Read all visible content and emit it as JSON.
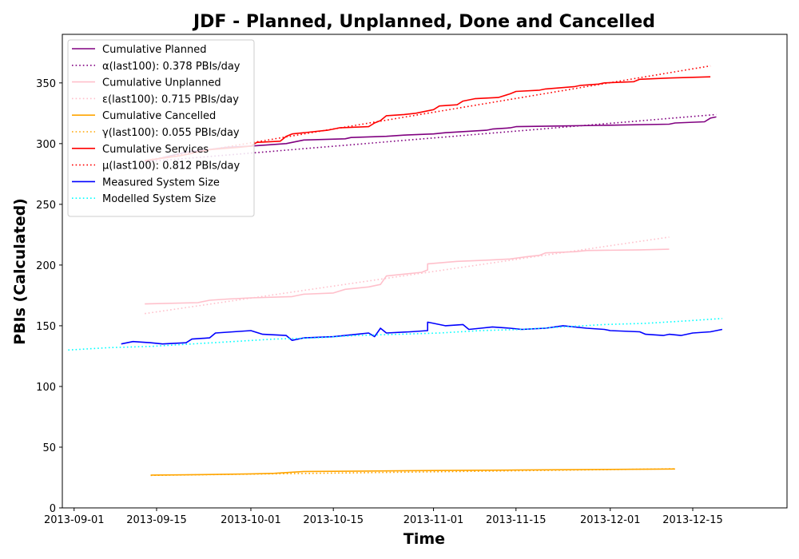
{
  "chart_data": {
    "type": "line",
    "title": "JDF - Planned, Unplanned, Done  and Cancelled",
    "xlabel": "Time",
    "ylabel": "PBIs (Calculated)",
    "xlim": [
      "2013-08-30",
      "2013-12-31"
    ],
    "ylim": [
      0,
      390
    ],
    "x_ticks": [
      "2013-09-01",
      "2013-09-15",
      "2013-10-01",
      "2013-10-15",
      "2013-11-01",
      "2013-11-15",
      "2013-12-01",
      "2013-12-15"
    ],
    "y_ticks": [
      0,
      50,
      100,
      150,
      200,
      250,
      300,
      350
    ],
    "grid": false,
    "legend_position": "top-left",
    "series": [
      {
        "name": "Cumulative Planned",
        "color": "#800080",
        "style": "solid",
        "points": [
          [
            "2013-09-13",
            285
          ],
          [
            "2013-09-20",
            293
          ],
          [
            "2013-09-27",
            297
          ],
          [
            "2013-10-01",
            298
          ],
          [
            "2013-10-07",
            300
          ],
          [
            "2013-10-10",
            303
          ],
          [
            "2013-10-17",
            304
          ],
          [
            "2013-10-18",
            305
          ],
          [
            "2013-10-24",
            306
          ],
          [
            "2013-10-27",
            307
          ],
          [
            "2013-11-01",
            308
          ],
          [
            "2013-11-03",
            309
          ],
          [
            "2013-11-10",
            311
          ],
          [
            "2013-11-11",
            312
          ],
          [
            "2013-11-14",
            313
          ],
          [
            "2013-11-15",
            314
          ],
          [
            "2013-11-22",
            314.5
          ],
          [
            "2013-11-29",
            315
          ],
          [
            "2013-12-11",
            316
          ],
          [
            "2013-12-12",
            317
          ],
          [
            "2013-12-17",
            318
          ],
          [
            "2013-12-18",
            321
          ],
          [
            "2013-12-19",
            322
          ]
        ]
      },
      {
        "name": "α(last100): 0.378 PBIs/day",
        "color": "#800080",
        "style": "dotted",
        "points": [
          [
            "2013-09-13",
            285
          ],
          [
            "2013-12-19",
            324
          ]
        ]
      },
      {
        "name": "Cumulative Unplanned",
        "color": "#ffc0cb",
        "style": "solid",
        "points": [
          [
            "2013-09-13",
            168
          ],
          [
            "2013-09-22",
            169
          ],
          [
            "2013-09-24",
            171
          ],
          [
            "2013-09-27",
            172
          ],
          [
            "2013-10-01",
            173
          ],
          [
            "2013-10-08",
            174
          ],
          [
            "2013-10-10",
            176
          ],
          [
            "2013-10-15",
            177
          ],
          [
            "2013-10-17",
            180
          ],
          [
            "2013-10-21",
            182
          ],
          [
            "2013-10-23",
            184
          ],
          [
            "2013-10-24",
            191
          ],
          [
            "2013-10-28",
            193
          ],
          [
            "2013-10-30",
            194
          ],
          [
            "2013-10-31",
            196
          ],
          [
            "2013-10-31",
            201
          ],
          [
            "2013-11-05",
            203
          ],
          [
            "2013-11-10",
            204
          ],
          [
            "2013-11-14",
            205
          ],
          [
            "2013-11-17",
            207
          ],
          [
            "2013-11-19",
            208
          ],
          [
            "2013-11-20",
            210
          ],
          [
            "2013-11-25",
            211
          ],
          [
            "2013-11-27",
            212
          ],
          [
            "2013-12-06",
            212.5
          ],
          [
            "2013-12-11",
            213
          ]
        ]
      },
      {
        "name": "ε(last100): 0.715 PBIs/day",
        "color": "#ffc0cb",
        "style": "dotted",
        "points": [
          [
            "2013-09-13",
            160
          ],
          [
            "2013-12-11",
            223
          ]
        ]
      },
      {
        "name": "Cumulative Cancelled",
        "color": "#ffa500",
        "style": "solid",
        "points": [
          [
            "2013-09-14",
            27
          ],
          [
            "2013-09-20",
            27.2
          ],
          [
            "2013-10-01",
            28
          ],
          [
            "2013-10-05",
            28.5
          ],
          [
            "2013-10-10",
            30
          ],
          [
            "2013-10-20",
            30.3
          ],
          [
            "2013-11-01",
            30.8
          ],
          [
            "2013-11-15",
            31.2
          ],
          [
            "2013-12-01",
            31.7
          ],
          [
            "2013-12-12",
            32
          ]
        ]
      },
      {
        "name": "γ(last100): 0.055 PBIs/day",
        "color": "#ffa500",
        "style": "dotted",
        "points": [
          [
            "2013-09-14",
            26.8
          ],
          [
            "2013-12-12",
            32.2
          ]
        ]
      },
      {
        "name": "Cumulative Services",
        "color": "#ff0000",
        "style": "solid",
        "points": [
          [
            "2013-09-13",
            286
          ],
          [
            "2013-09-19",
            290
          ],
          [
            "2013-09-24",
            295
          ],
          [
            "2013-09-29",
            297
          ],
          [
            "2013-10-01",
            298
          ],
          [
            "2013-10-02",
            301
          ],
          [
            "2013-10-06",
            302
          ],
          [
            "2013-10-07",
            306
          ],
          [
            "2013-10-08",
            308
          ],
          [
            "2013-10-10",
            309
          ],
          [
            "2013-10-14",
            311
          ],
          [
            "2013-10-16",
            313
          ],
          [
            "2013-10-21",
            314
          ],
          [
            "2013-10-22",
            317
          ],
          [
            "2013-10-23",
            319
          ],
          [
            "2013-10-24",
            323
          ],
          [
            "2013-10-27",
            324
          ],
          [
            "2013-10-29",
            325
          ],
          [
            "2013-10-31",
            327
          ],
          [
            "2013-11-01",
            328
          ],
          [
            "2013-11-02",
            331
          ],
          [
            "2013-11-05",
            332
          ],
          [
            "2013-11-06",
            335
          ],
          [
            "2013-11-08",
            337
          ],
          [
            "2013-11-12",
            338
          ],
          [
            "2013-11-14",
            341
          ],
          [
            "2013-11-15",
            343
          ],
          [
            "2013-11-19",
            344
          ],
          [
            "2013-11-20",
            345
          ],
          [
            "2013-11-25",
            347
          ],
          [
            "2013-11-26",
            348
          ],
          [
            "2013-11-29",
            349
          ],
          [
            "2013-11-30",
            350
          ],
          [
            "2013-12-05",
            351
          ],
          [
            "2013-12-06",
            353
          ],
          [
            "2013-12-11",
            354
          ],
          [
            "2013-12-18",
            355
          ]
        ]
      },
      {
        "name": "μ(last100): 0.812 PBIs/day",
        "color": "#ff0000",
        "style": "dotted",
        "points": [
          [
            "2013-09-13",
            286
          ],
          [
            "2013-12-18",
            364
          ]
        ]
      },
      {
        "name": "Measured System Size",
        "color": "#0000ff",
        "style": "solid",
        "points": [
          [
            "2013-09-09",
            135
          ],
          [
            "2013-09-11",
            137
          ],
          [
            "2013-09-14",
            136
          ],
          [
            "2013-09-16",
            135
          ],
          [
            "2013-09-20",
            136
          ],
          [
            "2013-09-21",
            139
          ],
          [
            "2013-09-24",
            140
          ],
          [
            "2013-09-25",
            144
          ],
          [
            "2013-09-28",
            145
          ],
          [
            "2013-10-01",
            146
          ],
          [
            "2013-10-03",
            143
          ],
          [
            "2013-10-07",
            142
          ],
          [
            "2013-10-08",
            138
          ],
          [
            "2013-10-10",
            140
          ],
          [
            "2013-10-15",
            141
          ],
          [
            "2013-10-19",
            143
          ],
          [
            "2013-10-21",
            144
          ],
          [
            "2013-10-22",
            141
          ],
          [
            "2013-10-23",
            148
          ],
          [
            "2013-10-24",
            144
          ],
          [
            "2013-10-28",
            145
          ],
          [
            "2013-10-31",
            146
          ],
          [
            "2013-10-31",
            153
          ],
          [
            "2013-11-01",
            152
          ],
          [
            "2013-11-03",
            150
          ],
          [
            "2013-11-06",
            151
          ],
          [
            "2013-11-07",
            147
          ],
          [
            "2013-11-09",
            148
          ],
          [
            "2013-11-11",
            149
          ],
          [
            "2013-11-14",
            148
          ],
          [
            "2013-11-16",
            147
          ],
          [
            "2013-11-20",
            148
          ],
          [
            "2013-11-23",
            150
          ],
          [
            "2013-11-27",
            148
          ],
          [
            "2013-11-30",
            147
          ],
          [
            "2013-12-01",
            146
          ],
          [
            "2013-12-06",
            145
          ],
          [
            "2013-12-07",
            143
          ],
          [
            "2013-12-10",
            142
          ],
          [
            "2013-12-11",
            143
          ],
          [
            "2013-12-13",
            142
          ],
          [
            "2013-12-15",
            144
          ],
          [
            "2013-12-18",
            145
          ],
          [
            "2013-12-20",
            147
          ]
        ]
      },
      {
        "name": "Modelled System Size",
        "color": "#00ffff",
        "style": "dotted",
        "points": [
          [
            "2013-08-31",
            130
          ],
          [
            "2013-09-07",
            132
          ],
          [
            "2013-09-14",
            133
          ],
          [
            "2013-09-21",
            135
          ],
          [
            "2013-09-28",
            137
          ],
          [
            "2013-10-05",
            139
          ],
          [
            "2013-10-12",
            140
          ],
          [
            "2013-10-19",
            142
          ],
          [
            "2013-10-26",
            143
          ],
          [
            "2013-11-02",
            144
          ],
          [
            "2013-11-09",
            146
          ],
          [
            "2013-11-16",
            147
          ],
          [
            "2013-11-23",
            149
          ],
          [
            "2013-11-30",
            151
          ],
          [
            "2013-12-07",
            152
          ],
          [
            "2013-12-14",
            154
          ],
          [
            "2013-12-20",
            156
          ]
        ]
      }
    ]
  }
}
